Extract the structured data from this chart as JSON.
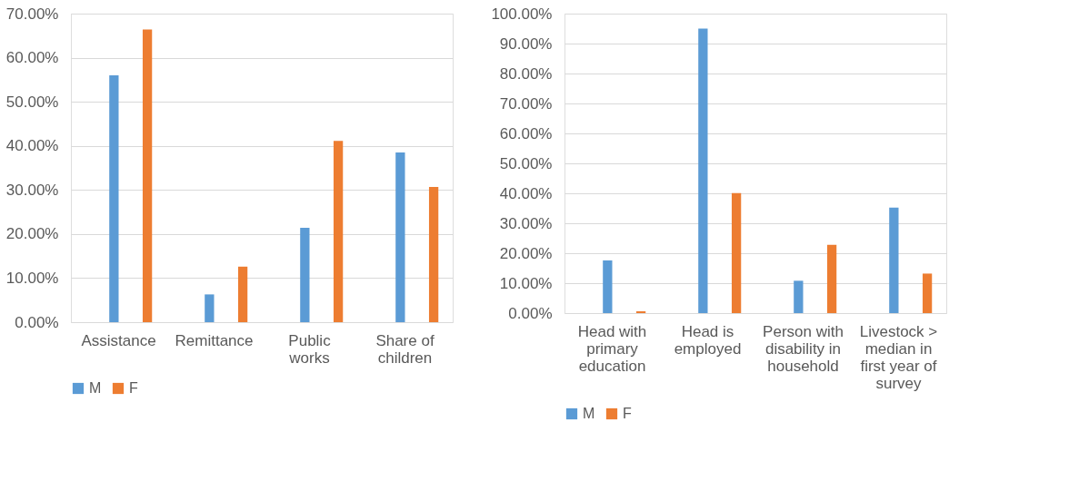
{
  "chart_data": [
    {
      "type": "bar",
      "categories": [
        "Assistance",
        "Remittance",
        "Public works",
        "Share of children"
      ],
      "series": [
        {
          "name": "M",
          "color": "#5b9bd5",
          "values": [
            56.0,
            6.3,
            21.4,
            38.5
          ]
        },
        {
          "name": "F",
          "color": "#ed7d31",
          "values": [
            66.4,
            12.6,
            41.1,
            30.7
          ]
        }
      ],
      "ylim": [
        0,
        70
      ],
      "yticks": [
        {
          "value": 0,
          "label": "0.00%"
        },
        {
          "value": 10,
          "label": "10.00%"
        },
        {
          "value": 20,
          "label": "20.00%"
        },
        {
          "value": 30,
          "label": "30.00%"
        },
        {
          "value": 40,
          "label": "40.00%"
        },
        {
          "value": 50,
          "label": "50.00%"
        },
        {
          "value": 60,
          "label": "60.00%"
        },
        {
          "value": 70,
          "label": "70.00%"
        }
      ],
      "grid": "y",
      "legend": "bottom"
    },
    {
      "type": "bar",
      "categories": [
        "Head with primary education",
        "Head is employed",
        "Person with disability in household",
        "Livestock > median in first year of survey"
      ],
      "series": [
        {
          "name": "M",
          "color": "#5b9bd5",
          "values": [
            17.6,
            95.0,
            10.8,
            35.2
          ]
        },
        {
          "name": "F",
          "color": "#ed7d31",
          "values": [
            0.6,
            40.1,
            22.8,
            13.2
          ]
        }
      ],
      "ylim": [
        0,
        100
      ],
      "yticks": [
        {
          "value": 0,
          "label": "0.00%"
        },
        {
          "value": 10,
          "label": "10.00%"
        },
        {
          "value": 20,
          "label": "20.00%"
        },
        {
          "value": 30,
          "label": "30.00%"
        },
        {
          "value": 40,
          "label": "40.00%"
        },
        {
          "value": 50,
          "label": "50.00%"
        },
        {
          "value": 60,
          "label": "60.00%"
        },
        {
          "value": 70,
          "label": "70.00%"
        },
        {
          "value": 80,
          "label": "80.00%"
        },
        {
          "value": 90,
          "label": "90.00%"
        },
        {
          "value": 100,
          "label": "100.00%"
        }
      ],
      "grid": "y",
      "legend": "bottom"
    }
  ]
}
